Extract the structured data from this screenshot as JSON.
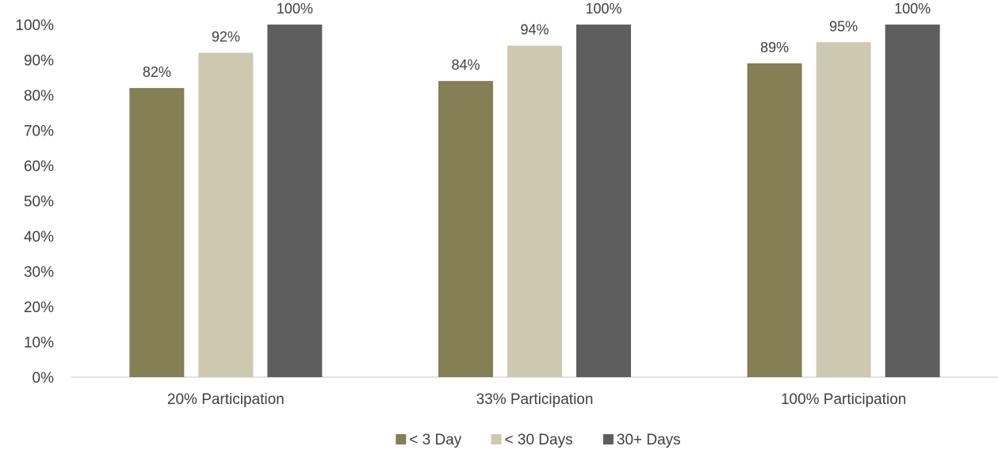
{
  "chart_data": {
    "type": "bar",
    "categories": [
      "20% Participation",
      "33% Participation",
      "100% Participation"
    ],
    "series": [
      {
        "name": "< 3 Day",
        "values": [
          82,
          84,
          89
        ],
        "labels": [
          "82%",
          "84%",
          "89%"
        ],
        "color": "#847f55"
      },
      {
        "name": "< 30 Days",
        "values": [
          92,
          94,
          95
        ],
        "labels": [
          "92%",
          "94%",
          "95%"
        ],
        "color": "#ccc9b0"
      },
      {
        "name": "30+ Days",
        "values": [
          100,
          100,
          100
        ],
        "labels": [
          "100%",
          "100%",
          "100%"
        ],
        "color": "#5e5e5e"
      }
    ],
    "yticks": [
      "0%",
      "10%",
      "20%",
      "30%",
      "40%",
      "50%",
      "60%",
      "70%",
      "80%",
      "90%",
      "100%"
    ],
    "ylim": [
      0,
      100
    ],
    "grid": false,
    "legend_position": "bottom"
  }
}
